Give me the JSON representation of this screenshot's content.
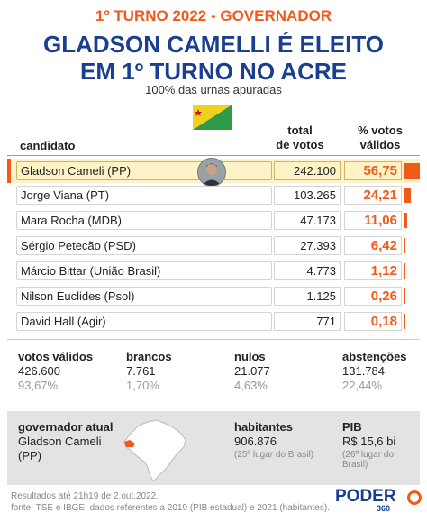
{
  "header": {
    "kicker": "1º TURNO 2022 - GOVERNADOR",
    "headline_line1": "GLADSON CAMELLI É ELEITO",
    "headline_line2": "EM 1º TURNO NO ACRE",
    "subhead": "100% das urnas apuradas"
  },
  "table": {
    "col_candidate": "candidato",
    "col_total_1": "total",
    "col_total_2": "de votos",
    "col_pct_1": "% votos",
    "col_pct_2": "válidos",
    "rows": [
      {
        "name": "Gladson Cameli (PP)",
        "votes": "242.100",
        "pct": "56,75",
        "share": 56.75
      },
      {
        "name": "Jorge Viana (PT)",
        "votes": "103.265",
        "pct": "24,21",
        "share": 24.21
      },
      {
        "name": "Mara Rocha (MDB)",
        "votes": "47.173",
        "pct": "11,06",
        "share": 11.06
      },
      {
        "name": "Sérgio Petecão (PSD)",
        "votes": "27.393",
        "pct": "6,42",
        "share": 6.42
      },
      {
        "name": "Márcio Bittar (União Brasil)",
        "votes": "4.773",
        "pct": "1,12",
        "share": 1.12
      },
      {
        "name": "Nilson Euclides (Psol)",
        "votes": "1.125",
        "pct": "0,26",
        "share": 0.26
      },
      {
        "name": "David Hall (Agir)",
        "votes": "771",
        "pct": "0,18",
        "share": 0.18
      }
    ]
  },
  "stats": {
    "valid_label": "votos válidos",
    "valid_value": "426.600",
    "valid_pct": "93,67%",
    "blank_label": "brancos",
    "blank_value": "7.761",
    "blank_pct": "1,70%",
    "null_label": "nulos",
    "null_value": "21.077",
    "null_pct": "4,63%",
    "abst_label": "abstenções",
    "abst_value": "131.784",
    "abst_pct": "22,44%"
  },
  "state": {
    "gov_label": "governador atual",
    "gov_name_1": "Gladson Cameli",
    "gov_name_2": "(PP)",
    "pop_label": "habitantes",
    "pop_value": "906.876",
    "pop_note": "(25º lugar do Brasil)",
    "pib_label": "PIB",
    "pib_value": "R$ 15,6 bi",
    "pib_note": "(26º lugar do Brasil)"
  },
  "footer": {
    "line1": "Resultados até 21h19 de 2.out.2022.",
    "line2": "fonte: TSE e IBGE; dados referentes a 2019 (PIB estadual) e 2021 (habitantes)."
  },
  "logo": {
    "name": "PODER",
    "sub": "360"
  },
  "colors": {
    "accent": "#f05a1a",
    "brand_blue": "#1b3f8f",
    "highlight": "#fdf3c6"
  }
}
